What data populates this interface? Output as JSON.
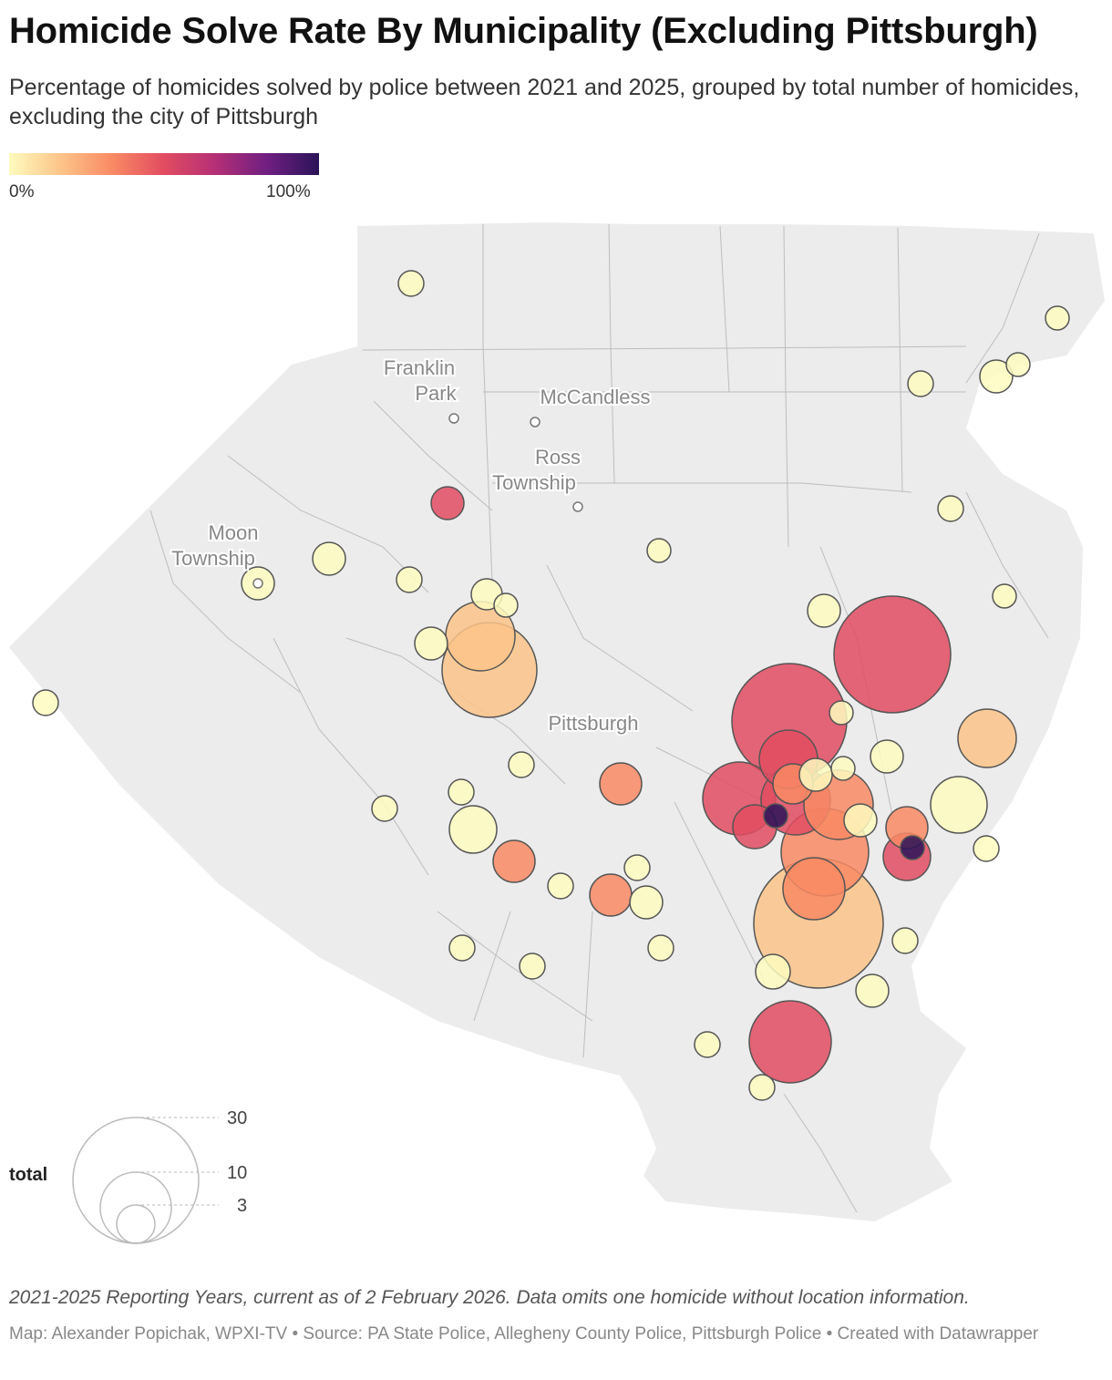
{
  "title": "Homicide Solve Rate By Municipality (Excluding Pittsburgh)",
  "subtitle": "Percentage of homicides solved by police between 2021 and 2025, grouped by total number of homicides, excluding the city of Pittsburgh",
  "color_scale": {
    "min_label": "0%",
    "max_label": "100%",
    "colors": [
      "#fefbbf",
      "#fcc488",
      "#f98a64",
      "#e24c61",
      "#b42f76",
      "#6f1f81",
      "#2a1358"
    ]
  },
  "map": {
    "land_color": "#ececec",
    "place_labels": [
      {
        "key": "franklin",
        "lines": [
          "Franklin",
          "Park"
        ]
      },
      {
        "key": "mccandless",
        "lines": [
          "McCandless"
        ]
      },
      {
        "key": "ross",
        "lines": [
          "Ross",
          "Township"
        ]
      },
      {
        "key": "moon",
        "lines": [
          "Moon",
          "Township"
        ]
      },
      {
        "key": "pittsburgh",
        "lines": [
          "Pittsburgh"
        ]
      }
    ]
  },
  "size_legend": {
    "title": "total",
    "values": [
      "30",
      "10",
      "3"
    ]
  },
  "note": "2021-2025 Reporting Years, current as of 2 February 2026. Data omits one homicide without location information.",
  "credit": "Map: Alexander Popichak, WPXI-TV • Source: PA State Police, Allegheny County Police, Pittsburgh Police • Created with Datawrapper"
}
